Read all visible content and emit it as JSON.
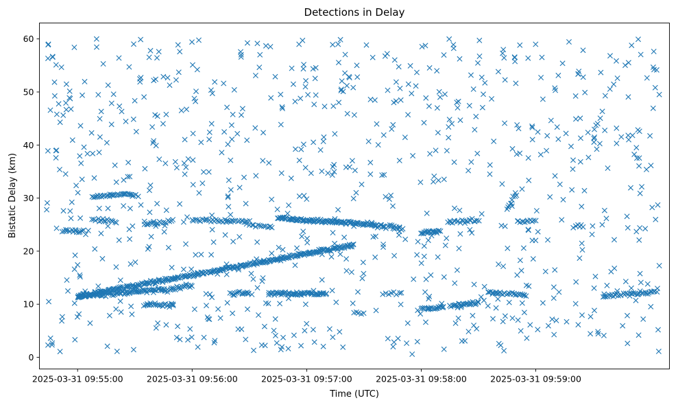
{
  "chart_data": {
    "type": "scatter",
    "title": "Detections in Delay",
    "xlabel": "Time (UTC)",
    "ylabel": "Bistatic Delay (km)",
    "marker": "x",
    "color": "#1f77b4",
    "grid": false,
    "legend": "none",
    "xlim": [
      "2025-03-31 09:54:40",
      "2025-03-31 10:00:10"
    ],
    "ylim": [
      -2.2,
      63
    ],
    "x_ticks": [
      "2025-03-31 09:55:00",
      "2025-03-31 09:56:00",
      "2025-03-31 09:57:00",
      "2025-03-31 09:58:00",
      "2025-03-31 09:59:00"
    ],
    "y_ticks": [
      0,
      10,
      20,
      30,
      40,
      50,
      60
    ],
    "time_span": [
      "2025-03-31 09:54:43",
      "2025-03-31 10:00:05"
    ],
    "tracks": [
      {
        "start": [
          "2025-03-31 09:55:00",
          11.5
        ],
        "end": [
          "2025-03-31 09:57:25",
          21.2
        ],
        "count": 300
      },
      {
        "start": [
          "2025-03-31 09:55:00",
          11.5
        ],
        "end": [
          "2025-03-31 09:55:45",
          12.8
        ],
        "count": 80
      },
      {
        "start": [
          "2025-03-31 09:55:45",
          12.5
        ],
        "end": [
          "2025-03-31 09:56:00",
          13.5
        ],
        "count": 20
      },
      {
        "start": [
          "2025-03-31 09:56:40",
          12.0
        ],
        "end": [
          "2025-03-31 09:57:10",
          12.0
        ],
        "count": 60
      },
      {
        "start": [
          "2025-03-31 09:56:45",
          26.2
        ],
        "end": [
          "2025-03-31 09:57:35",
          25.0
        ],
        "count": 110
      },
      {
        "start": [
          "2025-03-31 09:57:35",
          24.8
        ],
        "end": [
          "2025-03-31 09:57:50",
          24.3
        ],
        "count": 25
      },
      {
        "start": [
          "2025-03-31 09:54:52",
          23.8
        ],
        "end": [
          "2025-03-31 09:55:03",
          23.8
        ],
        "count": 15
      },
      {
        "start": [
          "2025-03-31 09:55:08",
          30.3
        ],
        "end": [
          "2025-03-31 09:55:30",
          30.8
        ],
        "count": 35
      },
      {
        "start": [
          "2025-03-31 09:55:08",
          26.0
        ],
        "end": [
          "2025-03-31 09:55:20",
          25.6
        ],
        "count": 15
      },
      {
        "start": [
          "2025-03-31 09:55:35",
          25.0
        ],
        "end": [
          "2025-03-31 09:55:50",
          25.7
        ],
        "count": 18
      },
      {
        "start": [
          "2025-03-31 09:56:00",
          25.9
        ],
        "end": [
          "2025-03-31 09:56:30",
          25.6
        ],
        "count": 35
      },
      {
        "start": [
          "2025-03-31 09:56:30",
          24.8
        ],
        "end": [
          "2025-03-31 09:56:42",
          24.6
        ],
        "count": 12
      },
      {
        "start": [
          "2025-03-31 09:55:35",
          10.0
        ],
        "end": [
          "2025-03-31 09:55:50",
          9.8
        ],
        "count": 25
      },
      {
        "start": [
          "2025-03-31 09:56:20",
          12.0
        ],
        "end": [
          "2025-03-31 09:56:30",
          12.0
        ],
        "count": 15
      },
      {
        "start": [
          "2025-03-31 09:58:00",
          23.5
        ],
        "end": [
          "2025-03-31 09:58:10",
          23.8
        ],
        "count": 20
      },
      {
        "start": [
          "2025-03-31 09:58:15",
          25.5
        ],
        "end": [
          "2025-03-31 09:58:30",
          25.8
        ],
        "count": 20
      },
      {
        "start": [
          "2025-03-31 09:58:00",
          9.2
        ],
        "end": [
          "2025-03-31 09:58:12",
          9.4
        ],
        "count": 20
      },
      {
        "start": [
          "2025-03-31 09:58:15",
          9.8
        ],
        "end": [
          "2025-03-31 09:58:30",
          10.3
        ],
        "count": 25
      },
      {
        "start": [
          "2025-03-31 09:58:35",
          12.2
        ],
        "end": [
          "2025-03-31 09:58:55",
          11.8
        ],
        "count": 30
      },
      {
        "start": [
          "2025-03-31 09:58:50",
          25.5
        ],
        "end": [
          "2025-03-31 09:59:00",
          25.8
        ],
        "count": 12
      },
      {
        "start": [
          "2025-03-31 09:59:35",
          11.5
        ],
        "end": [
          "2025-03-31 10:00:03",
          12.3
        ],
        "count": 40
      },
      {
        "start": [
          "2025-03-31 09:58:45",
          28.0
        ],
        "end": [
          "2025-03-31 09:58:50",
          31.0
        ],
        "count": 10
      },
      {
        "start": [
          "2025-03-31 09:59:20",
          24.7
        ],
        "end": [
          "2025-03-31 09:59:25",
          24.7
        ],
        "count": 6
      },
      {
        "start": [
          "2025-03-31 09:57:25",
          8.3
        ],
        "end": [
          "2025-03-31 09:57:30",
          8.3
        ],
        "count": 5
      },
      {
        "start": [
          "2025-03-31 09:57:40",
          12.0
        ],
        "end": [
          "2025-03-31 09:57:50",
          12.0
        ],
        "count": 8
      }
    ],
    "clutter": {
      "count": 820,
      "x_range": [
        "2025-03-31 09:54:43",
        "2025-03-31 10:00:05"
      ],
      "y_range": [
        0.5,
        60
      ]
    }
  }
}
